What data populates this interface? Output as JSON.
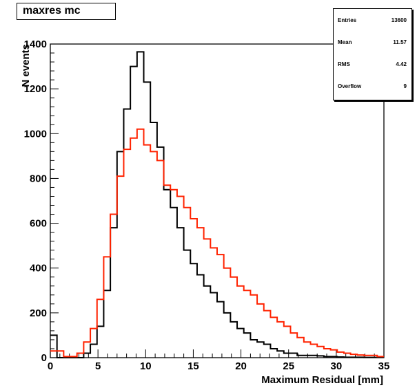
{
  "chart_data": {
    "type": "histogram",
    "title": "maxres mc",
    "xlabel": "Maximum Residual [mm]",
    "ylabel": "N events",
    "xlim": [
      0,
      35
    ],
    "ylim": [
      0,
      1400
    ],
    "bin_width": 0.7,
    "x_ticks": [
      0,
      5,
      10,
      15,
      20,
      25,
      30,
      35
    ],
    "y_ticks": [
      0,
      200,
      400,
      600,
      800,
      1000,
      1200,
      1400
    ],
    "grid": false,
    "series": [
      {
        "color": "#000000",
        "values": [
          100,
          0,
          0,
          0,
          0,
          20,
          60,
          140,
          300,
          580,
          920,
          1110,
          1300,
          1365,
          1230,
          1050,
          940,
          750,
          670,
          580,
          480,
          420,
          370,
          320,
          290,
          250,
          200,
          160,
          130,
          110,
          80,
          70,
          60,
          40,
          30,
          20,
          20,
          10,
          10,
          10,
          8,
          5,
          5,
          3,
          2,
          2,
          2,
          1,
          1,
          1
        ]
      },
      {
        "color": "#ff2200",
        "values": [
          30,
          30,
          5,
          5,
          20,
          70,
          130,
          260,
          450,
          640,
          810,
          930,
          980,
          1020,
          950,
          920,
          880,
          770,
          750,
          720,
          670,
          620,
          580,
          530,
          490,
          460,
          400,
          360,
          320,
          300,
          280,
          240,
          210,
          180,
          160,
          140,
          110,
          90,
          70,
          60,
          50,
          40,
          35,
          25,
          20,
          15,
          12,
          10,
          10,
          5
        ]
      }
    ],
    "stats": [
      {
        "label": "Entries",
        "value": "13600"
      },
      {
        "label": "Mean",
        "value": "11.57"
      },
      {
        "label": "RMS",
        "value": "4.42"
      },
      {
        "label": "Overflow",
        "value": "9"
      }
    ]
  }
}
